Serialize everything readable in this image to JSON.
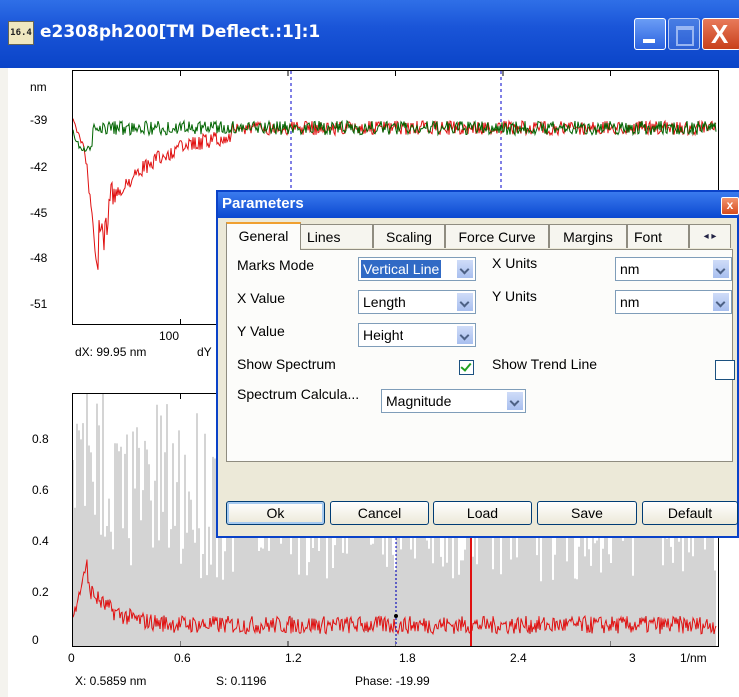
{
  "window": {
    "title": "e2308ph200[TM Deflect.:1]:1",
    "icon_text": "16.4",
    "icons": {
      "minimize": "minimize-icon",
      "maximize": "maximize-icon",
      "close": "close-icon"
    },
    "close_glyph": "X"
  },
  "top_plot": {
    "y_unit": "nm",
    "y_ticks": [
      "-39",
      "-42",
      "-45",
      "-48",
      "-51"
    ],
    "x_ticks": [
      "100"
    ],
    "cursor_readout": {
      "dx": "dX: 99.95 nm",
      "dy": "dY"
    }
  },
  "bottom_plot": {
    "y_ticks": [
      "0.8",
      "0.6",
      "0.4",
      "0.2",
      "0"
    ],
    "x_ticks": [
      "0",
      "0.6",
      "1.2",
      "1.8",
      "2.4",
      "3",
      "1/nm"
    ],
    "status": {
      "x": "X: 0.5859 nm",
      "s": "S: 0.1196",
      "phase": "Phase: -19.99"
    }
  },
  "dialog": {
    "title": "Parameters",
    "close_glyph": "x",
    "tabs": [
      "General",
      "Lines",
      "Scaling",
      "Force Curve",
      "Margins",
      "Font"
    ],
    "tab_scroll": "◂ ▸",
    "general": {
      "marks_mode_label": "Marks Mode",
      "marks_mode_value": "Vertical Line",
      "x_value_label": "X Value",
      "x_value_value": "Length",
      "y_value_label": "Y Value",
      "y_value_value": "Height",
      "show_spectrum_label": "Show Spectrum",
      "show_spectrum_checked": true,
      "spectrum_calc_label": "Spectrum Calcula...",
      "spectrum_calc_value": "Magnitude",
      "x_units_label": "X Units",
      "x_units_value": "nm",
      "y_units_label": "Y Units",
      "y_units_value": "nm",
      "show_trend_label": "Show Trend Line",
      "show_trend_checked": false
    },
    "buttons": {
      "ok": "Ok",
      "cancel": "Cancel",
      "load": "Load",
      "save": "Save",
      "default": "Default"
    }
  },
  "colors": {
    "trace_red": "#e01010",
    "trace_green": "#006400",
    "trace_gray": "#bdbdbd",
    "cursor_blue": "#0000cc",
    "title_blue": "#0a44c8"
  }
}
